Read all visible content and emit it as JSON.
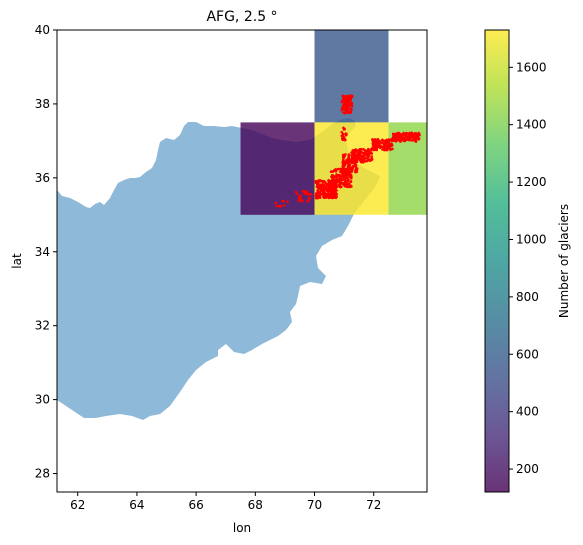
{
  "chart_data": {
    "type": "heatmap",
    "title": "AFG, 2.5 °",
    "xlabel": "lon",
    "ylabel": "lat",
    "xlim": [
      61.3,
      73.8
    ],
    "ylim": [
      27.5,
      40.0
    ],
    "xticks": [
      62,
      64,
      66,
      68,
      70,
      72
    ],
    "yticks": [
      28,
      30,
      32,
      34,
      36,
      38,
      40
    ],
    "colorbar": {
      "label": "Number of glaciers",
      "colormap": "viridis",
      "alpha": 0.8,
      "range": [
        120,
        1730
      ],
      "ticks": [
        200,
        400,
        600,
        800,
        1000,
        1200,
        1400,
        1600
      ]
    },
    "cells": [
      {
        "lon_range": [
          67.5,
          70.0
        ],
        "lat_range": [
          35.0,
          37.5
        ],
        "value": 130
      },
      {
        "lon_range": [
          70.0,
          72.5
        ],
        "lat_range": [
          37.5,
          40.0
        ],
        "value": 560
      },
      {
        "lon_range": [
          70.0,
          72.5
        ],
        "lat_range": [
          35.0,
          37.5
        ],
        "value": 1730
      },
      {
        "lon_range": [
          72.5,
          75.0
        ],
        "lat_range": [
          35.0,
          37.5
        ],
        "value": 1450
      }
    ],
    "country_fill": "#8fb9d9",
    "glacier_color": "#ff0000",
    "grid": false
  }
}
